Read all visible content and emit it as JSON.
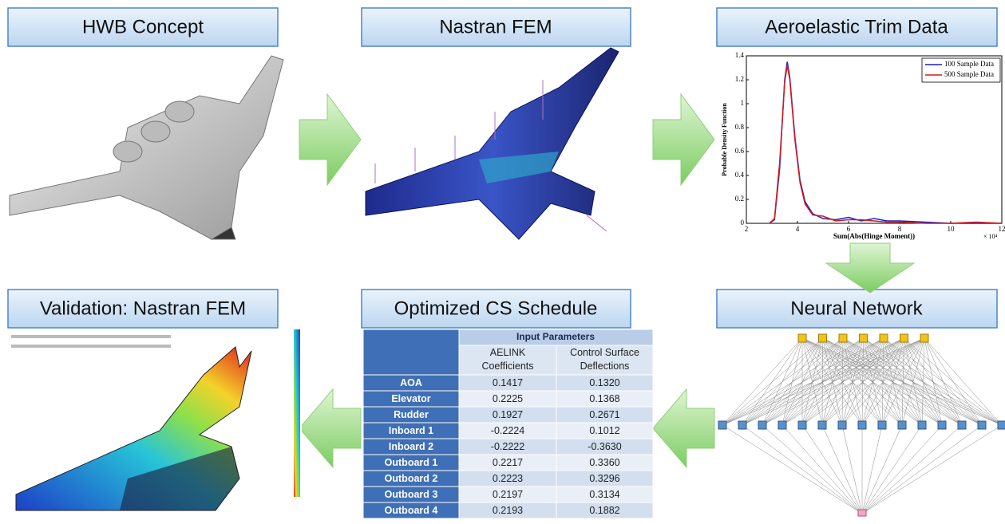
{
  "panels": {
    "hwb": "HWB Concept",
    "nastran": "Nastran FEM",
    "trim": "Aeroelastic Trim Data",
    "validation": "Validation: Nastran FEM",
    "schedule": "Optimized CS Schedule",
    "neural": "Neural Network"
  },
  "trim_chart": {
    "type": "line",
    "xlabel": "Sum(Abs(Hinge Moment))",
    "ylabel": "Probable Density Function",
    "x_multiplier": "× 10⁴",
    "xlim": [
      2,
      12
    ],
    "ylim": [
      0,
      1.4
    ],
    "xticks": [
      2,
      4,
      6,
      8,
      10,
      12
    ],
    "yticks": [
      0,
      0.2,
      0.4,
      0.6,
      0.8,
      1,
      1.2,
      1.4
    ],
    "x": [
      2.9,
      3.1,
      3.3,
      3.5,
      3.6,
      3.7,
      3.9,
      4.1,
      4.3,
      4.6,
      5,
      5.5,
      6,
      6.5,
      7,
      7.5,
      8,
      9,
      10,
      11,
      12
    ],
    "series": [
      {
        "name": "100 Sample Data",
        "color": "#1f1fc8",
        "values": [
          0,
          0.03,
          0.45,
          1.2,
          1.35,
          1.22,
          0.72,
          0.36,
          0.18,
          0.08,
          0.04,
          0.03,
          0.05,
          0.02,
          0.04,
          0.02,
          0.02,
          0.01,
          0,
          0,
          0
        ]
      },
      {
        "name": "500 Sample Data",
        "color": "#d01c1c",
        "values": [
          0,
          0.04,
          0.5,
          1.18,
          1.32,
          1.2,
          0.7,
          0.34,
          0.16,
          0.07,
          0.06,
          0.02,
          0.03,
          0.03,
          0.02,
          0.01,
          0.01,
          0,
          0,
          0.01,
          0
        ]
      }
    ]
  },
  "table": {
    "group_header": "Input Parameters",
    "columns": [
      "AELINK Coefficients",
      "Control Surface Deflections"
    ],
    "rows": [
      [
        "AOA",
        "0.1417",
        "0.1320"
      ],
      [
        "Elevator",
        "0.2225",
        "0.1368"
      ],
      [
        "Rudder",
        "0.1927",
        "0.2671"
      ],
      [
        "Inboard 1",
        "-0.2224",
        "0.1012"
      ],
      [
        "Inboard 2",
        "-0.2222",
        "-0.3630"
      ],
      [
        "Outboard 1",
        "0.2217",
        "0.3360"
      ],
      [
        "Outboard 2",
        "0.2223",
        "0.3296"
      ],
      [
        "Outboard 3",
        "0.2197",
        "0.3134"
      ],
      [
        "Outboard 4",
        "0.2193",
        "0.1882"
      ]
    ]
  }
}
